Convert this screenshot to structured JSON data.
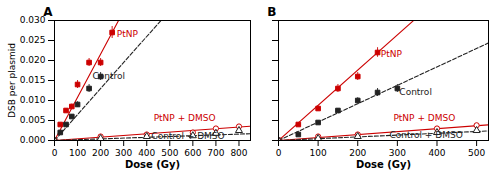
{
  "chart_data": [
    {
      "type": "scatter",
      "title": "A",
      "xlabel": "Dose (Gy)",
      "ylabel": "DSB per plasmid",
      "xlim": [
        0,
        850
      ],
      "ylim": [
        0,
        0.03
      ],
      "xticks": [
        0,
        100,
        200,
        300,
        400,
        500,
        600,
        700,
        800
      ],
      "yticks": [
        {
          "value": 0,
          "label": "0.000"
        },
        {
          "value": 0.005,
          "label": "0.005"
        },
        {
          "value": 0.01,
          "label": "0.010"
        },
        {
          "value": 0.015,
          "label": "0.015"
        },
        {
          "value": 0.02,
          "label": "0.020"
        },
        {
          "value": 0.025,
          "label": "0.025"
        },
        {
          "value": 0.03,
          "label": "0.030"
        }
      ],
      "grid": false,
      "series": [
        {
          "name": "PtNP",
          "color": "#cc0000",
          "marker": "square",
          "line_style": "solid",
          "x": [
            0,
            25,
            50,
            75,
            100,
            150,
            200,
            250
          ],
          "values": [
            0.0,
            0.004,
            0.0075,
            0.0085,
            0.014,
            0.0195,
            0.0195,
            0.027
          ],
          "yerr": [
            0.0,
            0.0003,
            0.0005,
            0.0006,
            0.001,
            0.001,
            0.001,
            0.0015
          ],
          "fit_x": [
            0,
            850
          ],
          "fit_slope": 0.000108
        },
        {
          "name": "Control",
          "color": "#222222",
          "marker": "square",
          "line_style": "dashed",
          "x": [
            0,
            25,
            50,
            75,
            100,
            150,
            200
          ],
          "values": [
            0.0,
            0.002,
            0.004,
            0.006,
            0.009,
            0.013,
            0.016
          ],
          "yerr": [
            0.0,
            0.0003,
            0.0003,
            0.0005,
            0.0007,
            0.001,
            0.001
          ],
          "fit_x": [
            0,
            850
          ],
          "fit_slope": 6.5e-05
        },
        {
          "name": "PtNP + DMSO",
          "color": "#cc0000",
          "marker": "circle-open",
          "line_style": "solid",
          "x": [
            0,
            200,
            400,
            600,
            700,
            800
          ],
          "values": [
            0.0,
            0.001,
            0.0015,
            0.002,
            0.003,
            0.0035
          ],
          "yerr": [
            0.0,
            0.0001,
            0.0001,
            0.0001,
            0.0002,
            0.0002
          ],
          "fit_x": [
            0,
            850
          ],
          "fit_slope": 4.2e-06
        },
        {
          "name": "Control + DMSO",
          "color": "#222222",
          "marker": "triangle-open",
          "line_style": "dashed",
          "x": [
            0,
            200,
            400,
            600,
            700,
            800
          ],
          "values": [
            0.0,
            0.0005,
            0.001,
            0.0012,
            0.0018,
            0.0025
          ],
          "yerr": [
            0.0,
            0.0001,
            0.0001,
            0.0001,
            0.0001,
            0.0001
          ],
          "fit_x": [
            0,
            850
          ],
          "fit_slope": 2e-06
        }
      ],
      "annotations": [
        {
          "text": "PtNP",
          "x": 270,
          "y": 0.0265,
          "color": "#cc0000"
        },
        {
          "text": "Control",
          "x": 165,
          "y": 0.0162,
          "color": "#222222"
        },
        {
          "text": "PtNP + DMSO",
          "x": 430,
          "y": 0.0057,
          "color": "#cc0000"
        },
        {
          "text": "Control + DMSO",
          "x": 420,
          "y": 0.0012,
          "color": "#222222"
        }
      ]
    },
    {
      "type": "scatter",
      "title": "B",
      "xlabel": "Dose (Gy)",
      "xlim": [
        0,
        530
      ],
      "ylim": [
        0,
        0.03
      ],
      "xticks": [
        0,
        100,
        200,
        300,
        400,
        500
      ],
      "yticks": [
        {
          "value": 0,
          "label": "0.000"
        },
        {
          "value": 0.005,
          "label": "0.005"
        },
        {
          "value": 0.01,
          "label": "0.010"
        },
        {
          "value": 0.015,
          "label": "0.015"
        },
        {
          "value": 0.02,
          "label": "0.020"
        },
        {
          "value": 0.025,
          "label": "0.025"
        },
        {
          "value": 0.03,
          "label": "0.030"
        }
      ],
      "tick_labels": "x",
      "grid": false,
      "series": [
        {
          "name": "PtNP",
          "color": "#cc0000",
          "marker": "square",
          "line_style": "solid",
          "x": [
            0,
            50,
            100,
            150,
            200,
            250
          ],
          "values": [
            0.0,
            0.004,
            0.008,
            0.013,
            0.016,
            0.022
          ],
          "yerr": [
            0.0,
            0.0003,
            0.0006,
            0.001,
            0.001,
            0.0012
          ],
          "fit_x": [
            0,
            530
          ],
          "fit_slope": 8.8e-05
        },
        {
          "name": "Control",
          "color": "#222222",
          "marker": "square",
          "line_style": "dashed",
          "x": [
            0,
            50,
            100,
            150,
            200,
            250,
            300
          ],
          "values": [
            0.0,
            0.0015,
            0.0045,
            0.0075,
            0.01,
            0.012,
            0.013
          ],
          "yerr": [
            0.0,
            0.0002,
            0.0004,
            0.0005,
            0.0007,
            0.001,
            0.001
          ],
          "fit_x": [
            0,
            530
          ],
          "fit_slope": 4.6e-05
        },
        {
          "name": "PtNP + DMSO",
          "color": "#cc0000",
          "marker": "circle-open",
          "line_style": "solid",
          "x": [
            0,
            100,
            200,
            400,
            500
          ],
          "values": [
            0.0,
            0.001,
            0.0015,
            0.003,
            0.0038
          ],
          "yerr": [
            0.0,
            0.0001,
            0.0001,
            0.0002,
            0.0002
          ],
          "fit_x": [
            0,
            530
          ],
          "fit_slope": 7.4e-06
        },
        {
          "name": "Control + DMSO",
          "color": "#222222",
          "marker": "triangle-open",
          "line_style": "dashed",
          "x": [
            0,
            100,
            200,
            400,
            500
          ],
          "values": [
            0.0,
            0.0005,
            0.001,
            0.002,
            0.0025
          ],
          "yerr": [
            0.0,
            0.0001,
            0.0001,
            0.0001,
            0.0001
          ],
          "fit_x": [
            0,
            530
          ],
          "fit_slope": 4.5e-06
        }
      ],
      "annotations": [
        {
          "text": "PtNP",
          "x": 258,
          "y": 0.0215,
          "color": "#cc0000"
        },
        {
          "text": "Control",
          "x": 305,
          "y": 0.012,
          "color": "#222222"
        },
        {
          "text": "PtNP + DMSO",
          "x": 290,
          "y": 0.0056,
          "color": "#cc0000"
        },
        {
          "text": "Control + DMSO",
          "x": 280,
          "y": 0.0014,
          "color": "#222222"
        }
      ]
    }
  ]
}
